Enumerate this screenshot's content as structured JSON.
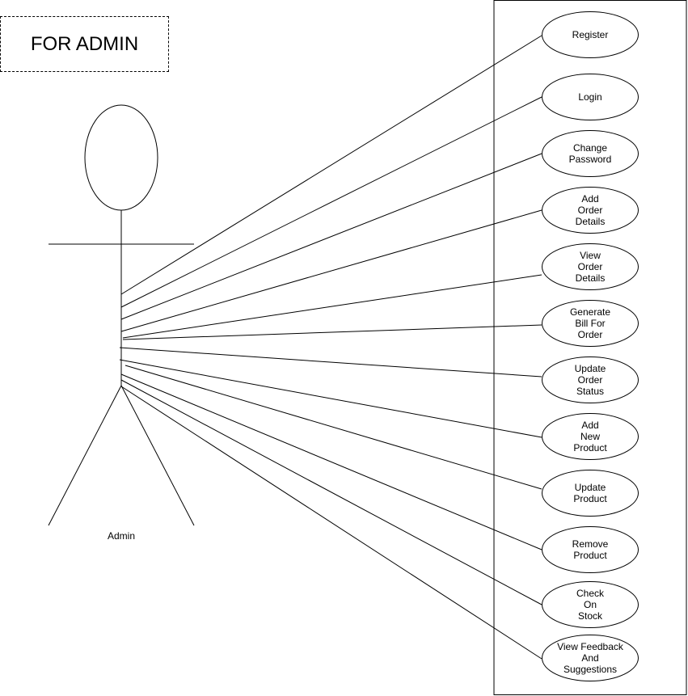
{
  "title": "FOR ADMIN",
  "actor": {
    "name": "Admin"
  },
  "use_cases": [
    {
      "id": "register",
      "label": "Register"
    },
    {
      "id": "login",
      "label": "Login"
    },
    {
      "id": "change-password",
      "label": "Change\nPassword"
    },
    {
      "id": "add-order-details",
      "label": "Add\nOrder\nDetails"
    },
    {
      "id": "view-order-details",
      "label": "View\nOrder\nDetails"
    },
    {
      "id": "generate-bill",
      "label": "Generate\nBill For\nOrder"
    },
    {
      "id": "update-order-status",
      "label": "Update\nOrder\nStatus"
    },
    {
      "id": "add-new-product",
      "label": "Add\nNew\nProduct"
    },
    {
      "id": "update-product",
      "label": "Update\nProduct"
    },
    {
      "id": "remove-product",
      "label": "Remove\nProduct"
    },
    {
      "id": "check-on-stock",
      "label": "Check\nOn\nStock"
    },
    {
      "id": "view-feedback",
      "label": "View Feedback\nAnd\nSuggestions"
    }
  ]
}
